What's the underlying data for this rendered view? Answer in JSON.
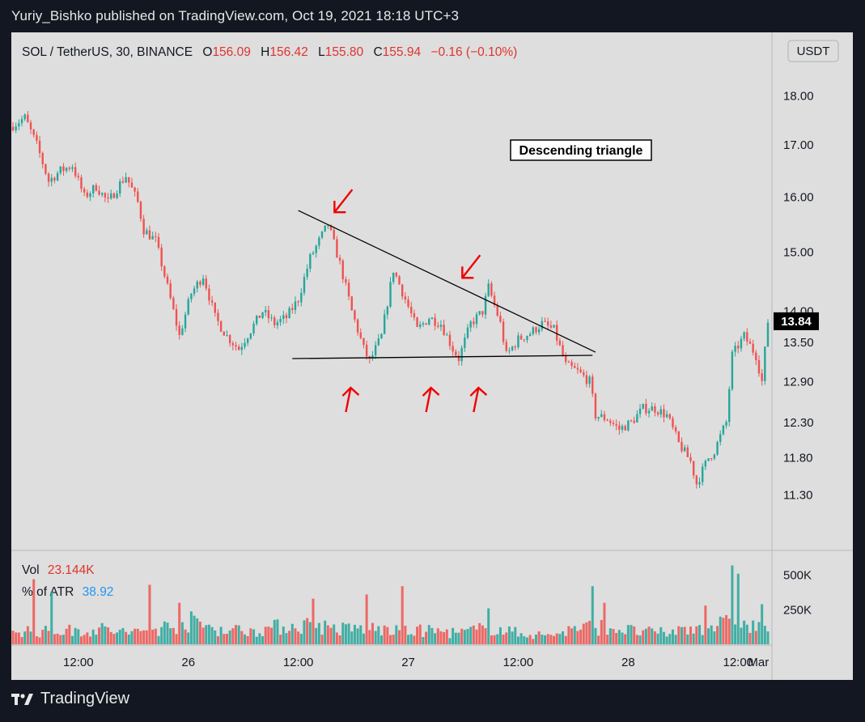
{
  "header": {
    "publisher": "Yuriy_Bishko published on TradingView.com, Oct 19, 2021 18:18 UTC+3"
  },
  "footer": {
    "brand": "TradingView"
  },
  "colors": {
    "up": "#26a69a",
    "down": "#ef5350",
    "annotation": "#f00000",
    "bg": "#dedede",
    "text": "#131722"
  },
  "legend": {
    "symbol": "SOL / TetherUS, 30, BINANCE",
    "o_label": "O",
    "o_value": "156.09",
    "h_label": "H",
    "h_value": "156.42",
    "l_label": "L",
    "l_value": "155.80",
    "c_label": "C",
    "c_value": "155.94",
    "change": "−0.16 (−0.10%)"
  },
  "price_scale": {
    "currency": "USDT",
    "last_price": "13.84"
  },
  "annotation": {
    "label": "Descending triangle"
  },
  "volume_pane": {
    "vol_label": "Vol",
    "vol_value": "23.144K",
    "atr_label": "% of ATR",
    "atr_value": "38.92"
  },
  "chart_data": {
    "type": "candlestick",
    "y_scale": "log",
    "y_ticks": [
      "18.00",
      "17.00",
      "16.00",
      "15.00",
      "14.00",
      "13.50",
      "12.90",
      "12.30",
      "11.80",
      "11.30"
    ],
    "x_ticks": [
      "12:00",
      "26",
      "12:00",
      "27",
      "12:00",
      "28",
      "12:00",
      "Mar"
    ],
    "volume_ticks": [
      "500K",
      "250K"
    ],
    "ylim": [
      11.0,
      18.6
    ],
    "close_path": [
      [
        0,
        17.4
      ],
      [
        4,
        17.55
      ],
      [
        8,
        17.0
      ],
      [
        12,
        16.3
      ],
      [
        16,
        16.5
      ],
      [
        20,
        16.6
      ],
      [
        24,
        16.0
      ],
      [
        28,
        16.2
      ],
      [
        32,
        15.9
      ],
      [
        36,
        16.25
      ],
      [
        38,
        16.4
      ],
      [
        42,
        15.9
      ],
      [
        44,
        15.4
      ],
      [
        48,
        15.2
      ],
      [
        52,
        14.4
      ],
      [
        56,
        13.6
      ],
      [
        60,
        14.3
      ],
      [
        64,
        14.6
      ],
      [
        68,
        13.9
      ],
      [
        72,
        13.6
      ],
      [
        76,
        13.4
      ],
      [
        80,
        13.7
      ],
      [
        84,
        14.0
      ],
      [
        88,
        13.8
      ],
      [
        92,
        13.9
      ],
      [
        96,
        14.2
      ],
      [
        100,
        14.9
      ],
      [
        104,
        15.3
      ],
      [
        106,
        15.5
      ],
      [
        110,
        14.8
      ],
      [
        114,
        14.0
      ],
      [
        118,
        13.4
      ],
      [
        120,
        13.2
      ],
      [
        124,
        13.6
      ],
      [
        128,
        14.7
      ],
      [
        132,
        14.2
      ],
      [
        136,
        13.7
      ],
      [
        140,
        13.9
      ],
      [
        144,
        13.8
      ],
      [
        148,
        13.4
      ],
      [
        150,
        13.25
      ],
      [
        154,
        13.8
      ],
      [
        158,
        14.0
      ],
      [
        160,
        14.4
      ],
      [
        164,
        13.8
      ],
      [
        166,
        13.3
      ],
      [
        170,
        13.55
      ],
      [
        174,
        13.65
      ],
      [
        178,
        13.8
      ],
      [
        182,
        13.7
      ],
      [
        186,
        13.15
      ],
      [
        190,
        13.05
      ],
      [
        194,
        12.9
      ],
      [
        196,
        12.4
      ],
      [
        200,
        12.35
      ],
      [
        204,
        12.2
      ],
      [
        208,
        12.3
      ],
      [
        212,
        12.5
      ],
      [
        216,
        12.5
      ],
      [
        220,
        12.4
      ],
      [
        224,
        12.0
      ],
      [
        228,
        11.75
      ],
      [
        230,
        11.45
      ],
      [
        234,
        11.8
      ],
      [
        236,
        11.9
      ],
      [
        240,
        12.3
      ],
      [
        242,
        13.3
      ],
      [
        246,
        13.6
      ],
      [
        250,
        13.3
      ],
      [
        252,
        12.9
      ],
      [
        254,
        13.84
      ]
    ],
    "volume_path": [
      [
        0,
        120
      ],
      [
        10,
        100
      ],
      [
        20,
        110
      ],
      [
        30,
        120
      ],
      [
        40,
        90
      ],
      [
        50,
        130
      ],
      [
        60,
        180
      ],
      [
        70,
        120
      ],
      [
        80,
        110
      ],
      [
        90,
        140
      ],
      [
        100,
        160
      ],
      [
        110,
        120
      ],
      [
        120,
        130
      ],
      [
        130,
        100
      ],
      [
        140,
        110
      ],
      [
        150,
        90
      ],
      [
        160,
        130
      ],
      [
        170,
        90
      ],
      [
        180,
        70
      ],
      [
        190,
        130
      ],
      [
        200,
        140
      ],
      [
        210,
        100
      ],
      [
        220,
        90
      ],
      [
        230,
        140
      ],
      [
        240,
        160
      ],
      [
        254,
        130
      ]
    ],
    "volume_spikes": [
      [
        7,
        470
      ],
      [
        13,
        380
      ],
      [
        46,
        430
      ],
      [
        56,
        300
      ],
      [
        101,
        330
      ],
      [
        119,
        360
      ],
      [
        131,
        420
      ],
      [
        160,
        260
      ],
      [
        195,
        420
      ],
      [
        199,
        300
      ],
      [
        233,
        280
      ],
      [
        242,
        570
      ],
      [
        244,
        510
      ],
      [
        252,
        290
      ]
    ],
    "trendline": {
      "from": [
        96,
        15.75
      ],
      "to": [
        196,
        13.35
      ]
    },
    "support": {
      "from": [
        94,
        13.25
      ],
      "to": [
        195,
        13.3
      ]
    },
    "arrows": [
      {
        "dir": "down-left",
        "bar": 106,
        "price": 15.6
      },
      {
        "dir": "down-left",
        "bar": 149,
        "price": 14.45
      },
      {
        "dir": "up",
        "bar": 112,
        "price": 13.1
      },
      {
        "dir": "up",
        "bar": 139,
        "price": 13.1
      },
      {
        "dir": "up",
        "bar": 155,
        "price": 13.1
      }
    ]
  }
}
